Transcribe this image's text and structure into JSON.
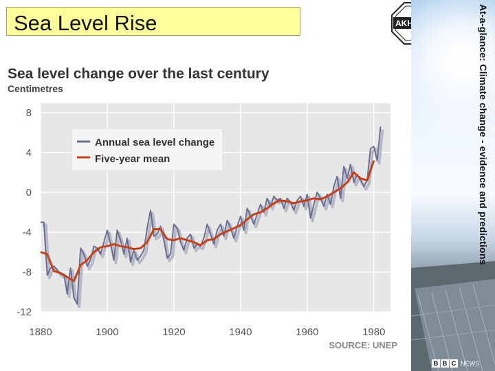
{
  "slide": {
    "title": "Sea Level Rise",
    "side_label": "At-a-glance: Climate change - evidence and predictions",
    "logo_text": "AKHTER",
    "badge": {
      "letters": [
        "B",
        "B",
        "C"
      ],
      "word": "NEWS"
    }
  },
  "colors": {
    "title_bg": "#ffff9c",
    "annual": "#6a6f92",
    "mean": "#c8401a",
    "plot_bg": "#e7e7e7",
    "legend_bg": "#f5f5f5"
  },
  "chart_data": {
    "type": "line",
    "title": "Sea level change over the last century",
    "ylabel": "Centimetres",
    "xlabel": "",
    "source": "SOURCE: UNEP",
    "xlim": [
      1880,
      1985
    ],
    "ylim": [
      -12,
      8
    ],
    "xticks": [
      1880,
      1900,
      1920,
      1940,
      1960,
      1980
    ],
    "yticks": [
      8,
      4,
      0,
      -4,
      -8,
      -12
    ],
    "grid": true,
    "legend_position": "top-left",
    "series": [
      {
        "name": "Annual sea level change",
        "color": "#6a6f92",
        "x": [
          1880,
          1881,
          1882,
          1883,
          1884,
          1885,
          1886,
          1887,
          1888,
          1889,
          1890,
          1891,
          1892,
          1893,
          1894,
          1895,
          1896,
          1897,
          1898,
          1899,
          1900,
          1901,
          1902,
          1903,
          1904,
          1905,
          1906,
          1907,
          1908,
          1909,
          1910,
          1911,
          1912,
          1913,
          1914,
          1915,
          1916,
          1917,
          1918,
          1919,
          1920,
          1921,
          1922,
          1923,
          1924,
          1925,
          1926,
          1927,
          1928,
          1929,
          1930,
          1931,
          1932,
          1933,
          1934,
          1935,
          1936,
          1937,
          1938,
          1939,
          1940,
          1941,
          1942,
          1943,
          1944,
          1945,
          1946,
          1947,
          1948,
          1949,
          1950,
          1951,
          1952,
          1953,
          1954,
          1955,
          1956,
          1957,
          1958,
          1959,
          1960,
          1961,
          1962,
          1963,
          1964,
          1965,
          1966,
          1967,
          1968,
          1969,
          1970,
          1971,
          1972,
          1973,
          1974,
          1975,
          1976,
          1977,
          1978,
          1979,
          1980,
          1981,
          1982
        ],
        "values": [
          -3.0,
          -3.0,
          -8.3,
          -7.6,
          -7.4,
          -7.8,
          -8.2,
          -8.2,
          -10.2,
          -7.6,
          -10.6,
          -11.2,
          -5.6,
          -6.2,
          -7.4,
          -6.8,
          -5.4,
          -5.6,
          -6.2,
          -5.0,
          -3.8,
          -5.2,
          -6.8,
          -3.8,
          -4.8,
          -6.2,
          -4.6,
          -7.0,
          -5.8,
          -6.8,
          -6.4,
          -5.8,
          -3.6,
          -1.8,
          -4.4,
          -4.2,
          -3.4,
          -4.8,
          -6.6,
          -6.2,
          -3.2,
          -3.6,
          -5.0,
          -5.8,
          -4.6,
          -4.2,
          -5.6,
          -5.2,
          -5.4,
          -4.6,
          -3.2,
          -4.2,
          -5.2,
          -3.8,
          -3.2,
          -4.4,
          -2.8,
          -3.6,
          -4.6,
          -3.4,
          -2.4,
          -3.8,
          -1.6,
          -2.4,
          -3.2,
          -2.2,
          -1.2,
          -2.0,
          -0.6,
          -1.4,
          -0.4,
          -0.8,
          -0.6,
          -1.6,
          -0.6,
          -1.0,
          -1.8,
          -0.8,
          -0.4,
          -1.4,
          -0.2,
          -2.6,
          -1.2,
          0.0,
          -0.6,
          -1.4,
          -0.2,
          -1.2,
          0.6,
          1.6,
          -0.6,
          2.6,
          1.4,
          2.8,
          1.0,
          1.8,
          1.2,
          0.6,
          1.2,
          4.4,
          4.6,
          3.2,
          6.6
        ]
      },
      {
        "name": "Five-year mean",
        "color": "#c8401a",
        "x": [
          1880,
          1882,
          1884,
          1886,
          1888,
          1890,
          1892,
          1894,
          1896,
          1898,
          1900,
          1902,
          1904,
          1906,
          1908,
          1910,
          1912,
          1914,
          1916,
          1918,
          1920,
          1922,
          1924,
          1926,
          1928,
          1930,
          1932,
          1934,
          1936,
          1938,
          1940,
          1942,
          1944,
          1946,
          1948,
          1950,
          1952,
          1954,
          1956,
          1958,
          1960,
          1962,
          1964,
          1966,
          1968,
          1970,
          1972,
          1974,
          1976,
          1978,
          1980
        ],
        "values": [
          -6.0,
          -6.2,
          -7.9,
          -8.1,
          -8.5,
          -8.9,
          -7.3,
          -6.8,
          -6.0,
          -5.5,
          -5.4,
          -5.2,
          -5.4,
          -5.5,
          -5.7,
          -5.6,
          -5.0,
          -3.7,
          -3.7,
          -4.7,
          -4.8,
          -4.6,
          -4.8,
          -5.0,
          -5.3,
          -4.8,
          -4.7,
          -4.2,
          -3.9,
          -3.6,
          -3.3,
          -2.7,
          -2.2,
          -2.0,
          -1.6,
          -1.1,
          -0.8,
          -0.9,
          -1.1,
          -0.9,
          -0.8,
          -0.6,
          -0.7,
          -0.4,
          0.0,
          0.4,
          1.0,
          2.0,
          1.4,
          1.2,
          3.2
        ]
      }
    ]
  }
}
